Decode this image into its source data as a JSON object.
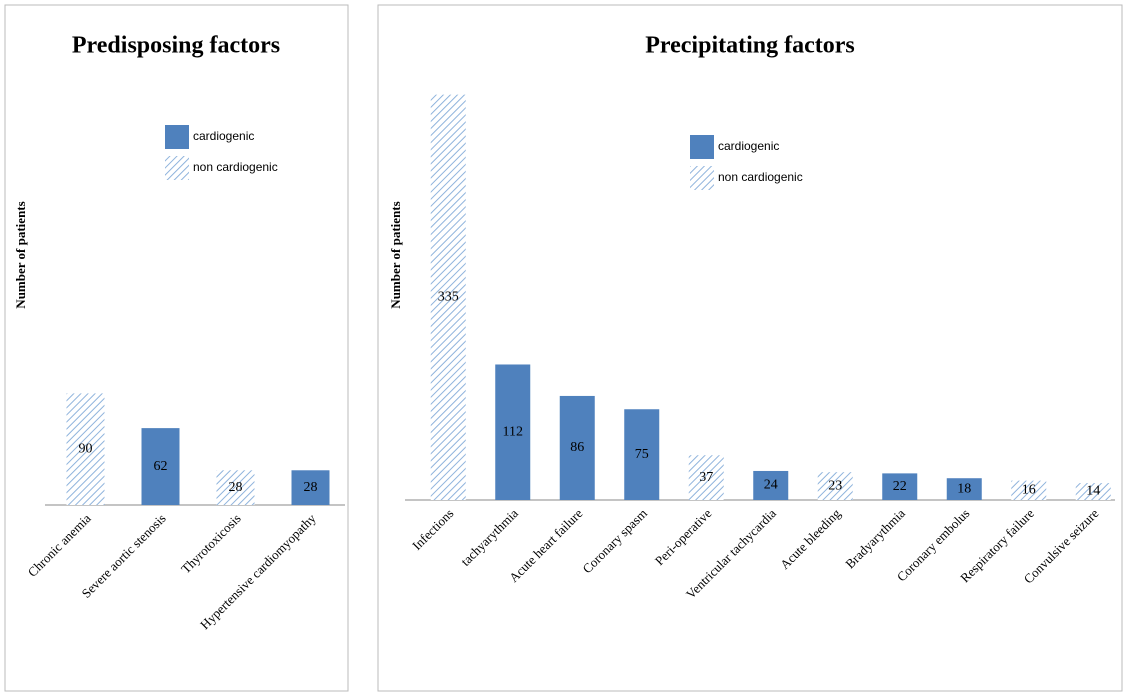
{
  "chart_data": [
    {
      "type": "bar",
      "title": "Predisposing factors",
      "y_label": "Number of patients",
      "categories": [
        "Chronic anemia",
        "Severe aortic stenosis",
        "Thyrotoxicosis",
        "Hypertensive cardiomyopathy"
      ],
      "series": [
        {
          "name": "cardiogenic",
          "color": "#4f81bd",
          "pattern": "solid",
          "values": [
            null,
            62,
            null,
            28
          ]
        },
        {
          "name": "non cardiogenic",
          "color": "#8fb3dc",
          "pattern": "hatch",
          "values": [
            90,
            null,
            28,
            null
          ]
        }
      ]
    },
    {
      "type": "bar",
      "title": "Precipitating factors",
      "y_label": "Number of patients",
      "categories": [
        "Infections",
        "tachyarythmia",
        "Acute heart failure",
        "Coronary spasm",
        "Peri-operative",
        "Ventricular tachycardia",
        "Acute bleeding",
        "Bradyarythmia",
        "Coronary embolus",
        "Respiratory failure",
        "Convulsive seizure"
      ],
      "series": [
        {
          "name": "cardiogenic",
          "color": "#4f81bd",
          "pattern": "solid",
          "values": [
            null,
            112,
            86,
            75,
            null,
            24,
            null,
            22,
            18,
            null,
            null
          ]
        },
        {
          "name": "non cardiogenic",
          "color": "#8fb3dc",
          "pattern": "hatch",
          "values": [
            335,
            null,
            null,
            null,
            37,
            null,
            23,
            null,
            null,
            16,
            14
          ]
        }
      ]
    }
  ]
}
